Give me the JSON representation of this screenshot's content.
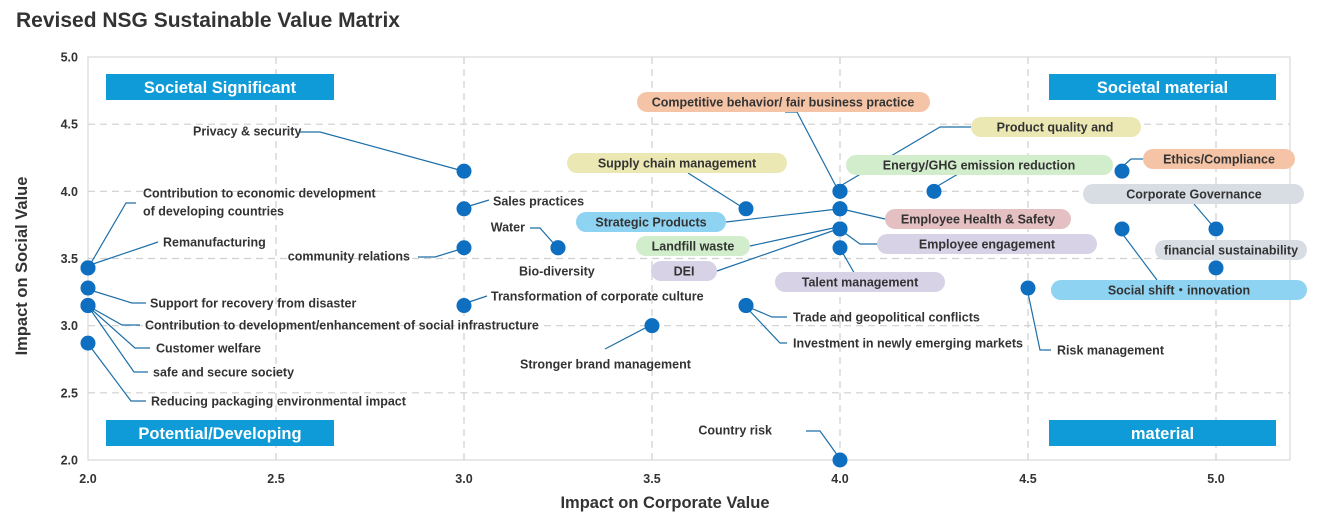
{
  "title": "Revised NSG Sustainable Value Matrix",
  "chart_data": {
    "type": "scatter",
    "title": "Revised NSG Sustainable Value Matrix",
    "xlabel": "Impact on Corporate Value",
    "ylabel": "Impact on Social Value",
    "xlim": [
      2.0,
      5.2
    ],
    "ylim": [
      2.0,
      5.0
    ],
    "xticks": [
      "2.0",
      "2.5",
      "3.0",
      "3.5",
      "4.0",
      "4.5",
      "5.0"
    ],
    "yticks": [
      "2.0",
      "2.5",
      "3.0",
      "3.5",
      "4.0",
      "4.5",
      "5.0"
    ],
    "grid": true,
    "quadrants": [
      {
        "label": "Societal Significant",
        "position": "top-left"
      },
      {
        "label": "Societal material",
        "position": "top-right"
      },
      {
        "label": "Potential/Developing",
        "position": "bottom-left"
      },
      {
        "label": "material",
        "position": "bottom-right"
      }
    ],
    "points": [
      {
        "label": "Privacy & security",
        "x": 3.0,
        "y": 4.15
      },
      {
        "label": "Sales practices",
        "x": 3.0,
        "y": 3.87
      },
      {
        "label": "community relations",
        "x": 3.0,
        "y": 3.58
      },
      {
        "label": "Transformation of corporate culture",
        "x": 3.0,
        "y": 3.15
      },
      {
        "label": "Water",
        "x": 3.25,
        "y": 3.58
      },
      {
        "label": "Bio-diversity",
        "x": 3.25,
        "y": 3.58
      },
      {
        "label": "Contribution to economic development\nof developing countries",
        "x": 2.0,
        "y": 3.43
      },
      {
        "label": "Remanufacturing",
        "x": 2.0,
        "y": 3.43
      },
      {
        "label": "Support for recovery from disaster",
        "x": 2.0,
        "y": 3.28
      },
      {
        "label": "Contribution to development/enhancement of social infrastructure",
        "x": 2.0,
        "y": 3.15
      },
      {
        "label": "Customer welfare",
        "x": 2.0,
        "y": 3.15
      },
      {
        "label": "safe and secure society",
        "x": 2.0,
        "y": 3.15
      },
      {
        "label": "Reducing packaging environmental impact",
        "x": 2.0,
        "y": 2.87
      },
      {
        "label": "Stronger brand management",
        "x": 3.5,
        "y": 3.0
      },
      {
        "label": "Supply chain management",
        "x": 3.75,
        "y": 3.87,
        "tag": "yellow"
      },
      {
        "label": "Trade and geopolitical conflicts",
        "x": 3.75,
        "y": 3.15
      },
      {
        "label": "Investment in newly emerging markets",
        "x": 3.75,
        "y": 3.15
      },
      {
        "label": "Competitive behavior/ fair business practice",
        "x": 4.0,
        "y": 4.0,
        "tag": "orange"
      },
      {
        "label": "Strategic Products",
        "x": 4.0,
        "y": 3.87,
        "tag": "blue"
      },
      {
        "label": "Employee Health & Safety",
        "x": 4.0,
        "y": 3.87,
        "tag": "red"
      },
      {
        "label": "Landfill waste",
        "x": 4.0,
        "y": 3.72,
        "tag": "green"
      },
      {
        "label": "DEI",
        "x": 4.0,
        "y": 3.72,
        "tag": "purple"
      },
      {
        "label": "Employee engagement",
        "x": 4.0,
        "y": 3.72,
        "tag": "purple"
      },
      {
        "label": "Talent management",
        "x": 4.0,
        "y": 3.58,
        "tag": "purple"
      },
      {
        "label": "Country risk",
        "x": 4.0,
        "y": 2.0
      },
      {
        "label": "Product quality and",
        "x": 4.0,
        "y": 4.0,
        "tag": "yellow"
      },
      {
        "label": "Energy/GHG emission reduction",
        "x": 4.25,
        "y": 4.0,
        "tag": "green"
      },
      {
        "label": "Risk management",
        "x": 4.5,
        "y": 3.28
      },
      {
        "label": "Ethics/Compliance",
        "x": 4.75,
        "y": 4.15,
        "tag": "orange"
      },
      {
        "label": "Social shift・innovation",
        "x": 4.75,
        "y": 3.72,
        "tag": "blue"
      },
      {
        "label": "Corporate Governance",
        "x": 5.0,
        "y": 3.72,
        "tag": "gray"
      },
      {
        "label": "financial sustainability",
        "x": 5.0,
        "y": 3.43,
        "tag": "gray"
      }
    ],
    "colors": {
      "point": "#0e6ebf",
      "quadrant_box": "#0f9ad8",
      "yellow": "#ebe8b4",
      "orange": "#f5c4a6",
      "blue": "#8fd3f3",
      "red": "#e4c0c2",
      "green": "#d2edcb",
      "purple": "#d8d2e6",
      "gray": "#d8dde4"
    }
  }
}
